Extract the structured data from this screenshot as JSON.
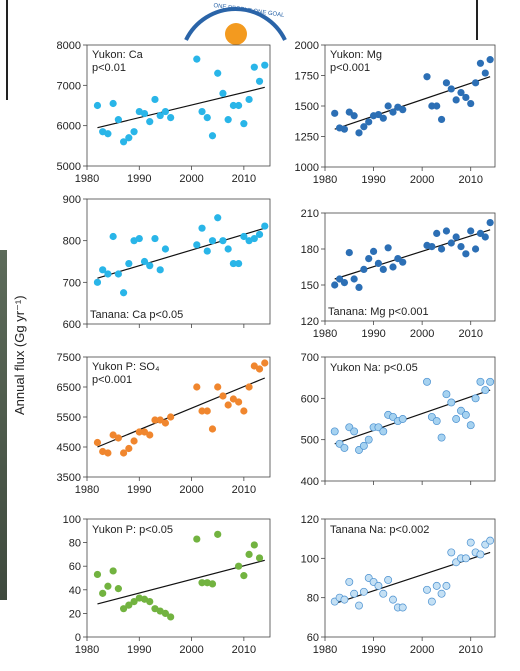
{
  "figure": {
    "y_label": "Annual flux (Gg yr⁻¹)",
    "logo_text": "ONE PEOPLE ONE GOAL"
  },
  "chart_data": [
    {
      "type": "scatter",
      "label_line1": "Yukon: Ca",
      "label_line2": "p<0.01",
      "color": "#29b5e8",
      "xlim": [
        1980,
        2015
      ],
      "ylim": [
        5000,
        8000
      ],
      "yticks": [
        5000,
        6000,
        7000,
        8000
      ],
      "xticks": [
        1980,
        1990,
        2000,
        2010
      ],
      "show_x_ticklabels": true,
      "x": [
        1982,
        1983,
        1984,
        1985,
        1986,
        1987,
        1988,
        1989,
        1990,
        1991,
        1992,
        1993,
        1994,
        1995,
        1996,
        2001,
        2002,
        2003,
        2004,
        2005,
        2006,
        2007,
        2008,
        2009,
        2010,
        2011,
        2012,
        2013,
        2014
      ],
      "y": [
        6500,
        5850,
        5800,
        6550,
        6150,
        5600,
        5700,
        5850,
        6350,
        6300,
        6100,
        6650,
        6250,
        6350,
        6200,
        7650,
        6350,
        6200,
        5750,
        7300,
        6800,
        6150,
        6500,
        6500,
        6050,
        6650,
        7450,
        7100,
        7500
      ],
      "trend": [
        [
          1982,
          5950
        ],
        [
          2014,
          6950
        ]
      ]
    },
    {
      "type": "scatter",
      "label_line1": "Yukon: Mg",
      "label_line2": "p<0.001",
      "color": "#2c6fb5",
      "xlim": [
        1980,
        2015
      ],
      "ylim": [
        1000,
        2000
      ],
      "yticks": [
        1000,
        1250,
        1500,
        1750,
        2000
      ],
      "xticks": [
        1980,
        1990,
        2000,
        2010
      ],
      "show_x_ticklabels": true,
      "x": [
        1982,
        1983,
        1984,
        1985,
        1986,
        1987,
        1988,
        1989,
        1990,
        1991,
        1992,
        1993,
        1994,
        1995,
        1996,
        2001,
        2002,
        2003,
        2004,
        2005,
        2006,
        2007,
        2008,
        2009,
        2010,
        2011,
        2012,
        2013,
        2014
      ],
      "y": [
        1440,
        1320,
        1310,
        1450,
        1420,
        1280,
        1330,
        1370,
        1420,
        1430,
        1400,
        1500,
        1450,
        1490,
        1470,
        1740,
        1500,
        1500,
        1390,
        1690,
        1640,
        1550,
        1610,
        1570,
        1520,
        1690,
        1850,
        1770,
        1880
      ],
      "trend": [
        [
          1982,
          1310
        ],
        [
          2014,
          1740
        ]
      ]
    },
    {
      "type": "scatter",
      "label_line1": "Tanana: Ca p<0.05",
      "label_line2": "",
      "color": "#29b5e8",
      "xlim": [
        1980,
        2015
      ],
      "ylim": [
        600,
        900
      ],
      "yticks": [
        600,
        700,
        800,
        900
      ],
      "xticks": [
        1980,
        1990,
        2000,
        2010
      ],
      "show_x_ticklabels": false,
      "x": [
        1982,
        1983,
        1984,
        1985,
        1986,
        1987,
        1988,
        1989,
        1990,
        1991,
        1992,
        1993,
        1994,
        1995,
        2001,
        2002,
        2003,
        2004,
        2005,
        2006,
        2007,
        2008,
        2009,
        2010,
        2011,
        2012,
        2013,
        2014
      ],
      "y": [
        700,
        730,
        720,
        810,
        720,
        675,
        745,
        800,
        805,
        750,
        740,
        805,
        730,
        780,
        790,
        830,
        775,
        800,
        855,
        800,
        780,
        745,
        745,
        810,
        800,
        805,
        815,
        835
      ],
      "trend": [
        [
          1982,
          710
        ],
        [
          2014,
          830
        ]
      ]
    },
    {
      "type": "scatter",
      "label_line1": "Tanana: Mg p<0.001",
      "label_line2": "",
      "color": "#2c6fb5",
      "xlim": [
        1980,
        2015
      ],
      "ylim": [
        120,
        210
      ],
      "yticks": [
        120,
        150,
        180,
        210
      ],
      "xticks": [
        1980,
        1990,
        2000,
        2010
      ],
      "show_x_ticklabels": true,
      "x": [
        1982,
        1983,
        1984,
        1985,
        1986,
        1987,
        1988,
        1989,
        1990,
        1991,
        1992,
        1993,
        1994,
        1995,
        1996,
        2001,
        2002,
        2003,
        2004,
        2005,
        2006,
        2007,
        2008,
        2009,
        2010,
        2011,
        2012,
        2013,
        2014
      ],
      "y": [
        150,
        155,
        152,
        177,
        155,
        148,
        163,
        172,
        178,
        168,
        163,
        181,
        165,
        172,
        169,
        183,
        182,
        193,
        180,
        195,
        185,
        190,
        182,
        176,
        195,
        180,
        193,
        190,
        202
      ],
      "trend": [
        [
          1982,
          155
        ],
        [
          2014,
          196
        ]
      ]
    },
    {
      "type": "scatter",
      "label_line1": "Yukon P: SO₄",
      "label_line2": "p<0.001",
      "color": "#f0862e",
      "xlim": [
        1980,
        2015
      ],
      "ylim": [
        3500,
        7500
      ],
      "yticks": [
        3500,
        4500,
        5500,
        6500,
        7500
      ],
      "xticks": [
        1980,
        1990,
        2000,
        2010
      ],
      "show_x_ticklabels": true,
      "x": [
        1982,
        1983,
        1984,
        1985,
        1986,
        1987,
        1988,
        1989,
        1990,
        1991,
        1992,
        1993,
        1994,
        1995,
        1996,
        2001,
        2002,
        2003,
        2004,
        2005,
        2006,
        2007,
        2008,
        2009,
        2010,
        2011,
        2012,
        2013,
        2014
      ],
      "y": [
        4650,
        4350,
        4300,
        4900,
        4800,
        4300,
        4450,
        4700,
        5000,
        5000,
        4900,
        5400,
        5400,
        5300,
        5500,
        6500,
        5700,
        5700,
        5100,
        6500,
        6200,
        5900,
        6100,
        6000,
        5700,
        6500,
        7200,
        7100,
        7300
      ],
      "trend": [
        [
          1982,
          4500
        ],
        [
          2014,
          6800
        ]
      ]
    },
    {
      "type": "scatter",
      "label_line1": "Yukon Na: p<0.05",
      "label_line2": "",
      "color": "#a6d2f0",
      "edge": "#4a90d0",
      "xlim": [
        1980,
        2015
      ],
      "ylim": [
        400,
        700
      ],
      "yticks": [
        400,
        500,
        600,
        700
      ],
      "xticks": [
        1980,
        1990,
        2000,
        2010
      ],
      "show_x_ticklabels": false,
      "x": [
        1982,
        1983,
        1984,
        1985,
        1986,
        1987,
        1988,
        1989,
        1990,
        1991,
        1992,
        1993,
        1994,
        1995,
        1996,
        2001,
        2002,
        2003,
        2004,
        2005,
        2006,
        2007,
        2008,
        2009,
        2010,
        2011,
        2012,
        2013,
        2014
      ],
      "y": [
        520,
        490,
        480,
        530,
        520,
        475,
        485,
        500,
        530,
        530,
        520,
        560,
        555,
        545,
        550,
        640,
        555,
        545,
        505,
        610,
        590,
        550,
        570,
        560,
        535,
        600,
        640,
        620,
        640
      ],
      "trend": [
        [
          1982,
          490
        ],
        [
          2014,
          620
        ]
      ]
    },
    {
      "type": "scatter",
      "label_line1": "Yukon P: p<0.05",
      "label_line2": "",
      "color": "#72b340",
      "xlim": [
        1980,
        2015
      ],
      "ylim": [
        0,
        100
      ],
      "yticks": [
        0,
        20,
        40,
        60,
        80,
        100
      ],
      "xticks": [
        1980,
        1990,
        2000,
        2010
      ],
      "show_x_ticklabels": true,
      "x": [
        1982,
        1983,
        1984,
        1985,
        1986,
        1987,
        1988,
        1989,
        1990,
        1991,
        1992,
        1993,
        1994,
        1995,
        1996,
        2001,
        2002,
        2003,
        2004,
        2005,
        2009,
        2010,
        2011,
        2012,
        2013
      ],
      "y": [
        53,
        37,
        43,
        56,
        41,
        24,
        27,
        30,
        33,
        32,
        30,
        24,
        22,
        20,
        17,
        83,
        46,
        46,
        45,
        87,
        60,
        52,
        70,
        78,
        67
      ],
      "trend": [
        [
          1982,
          28
        ],
        [
          2014,
          65
        ]
      ]
    },
    {
      "type": "scatter",
      "label_line1": "Tanana Na: p<0.002",
      "label_line2": "",
      "color": "#c4e0f4",
      "edge": "#4a90d0",
      "xlim": [
        1980,
        2015
      ],
      "ylim": [
        60,
        120
      ],
      "yticks": [
        60,
        80,
        100,
        120
      ],
      "xticks": [
        1980,
        1990,
        2000,
        2010
      ],
      "show_x_ticklabels": true,
      "x": [
        1982,
        1983,
        1984,
        1985,
        1986,
        1987,
        1988,
        1989,
        1990,
        1991,
        1992,
        1993,
        1994,
        1995,
        1996,
        2001,
        2002,
        2003,
        2004,
        2005,
        2006,
        2007,
        2008,
        2009,
        2010,
        2011,
        2012,
        2013,
        2014
      ],
      "y": [
        78,
        80,
        79,
        88,
        82,
        76,
        83,
        90,
        88,
        86,
        82,
        89,
        79,
        75,
        75,
        84,
        78,
        86,
        82,
        86,
        103,
        98,
        100,
        100,
        108,
        103,
        102,
        107,
        109
      ],
      "trend": [
        [
          1982,
          77
        ],
        [
          2014,
          103
        ]
      ]
    }
  ]
}
